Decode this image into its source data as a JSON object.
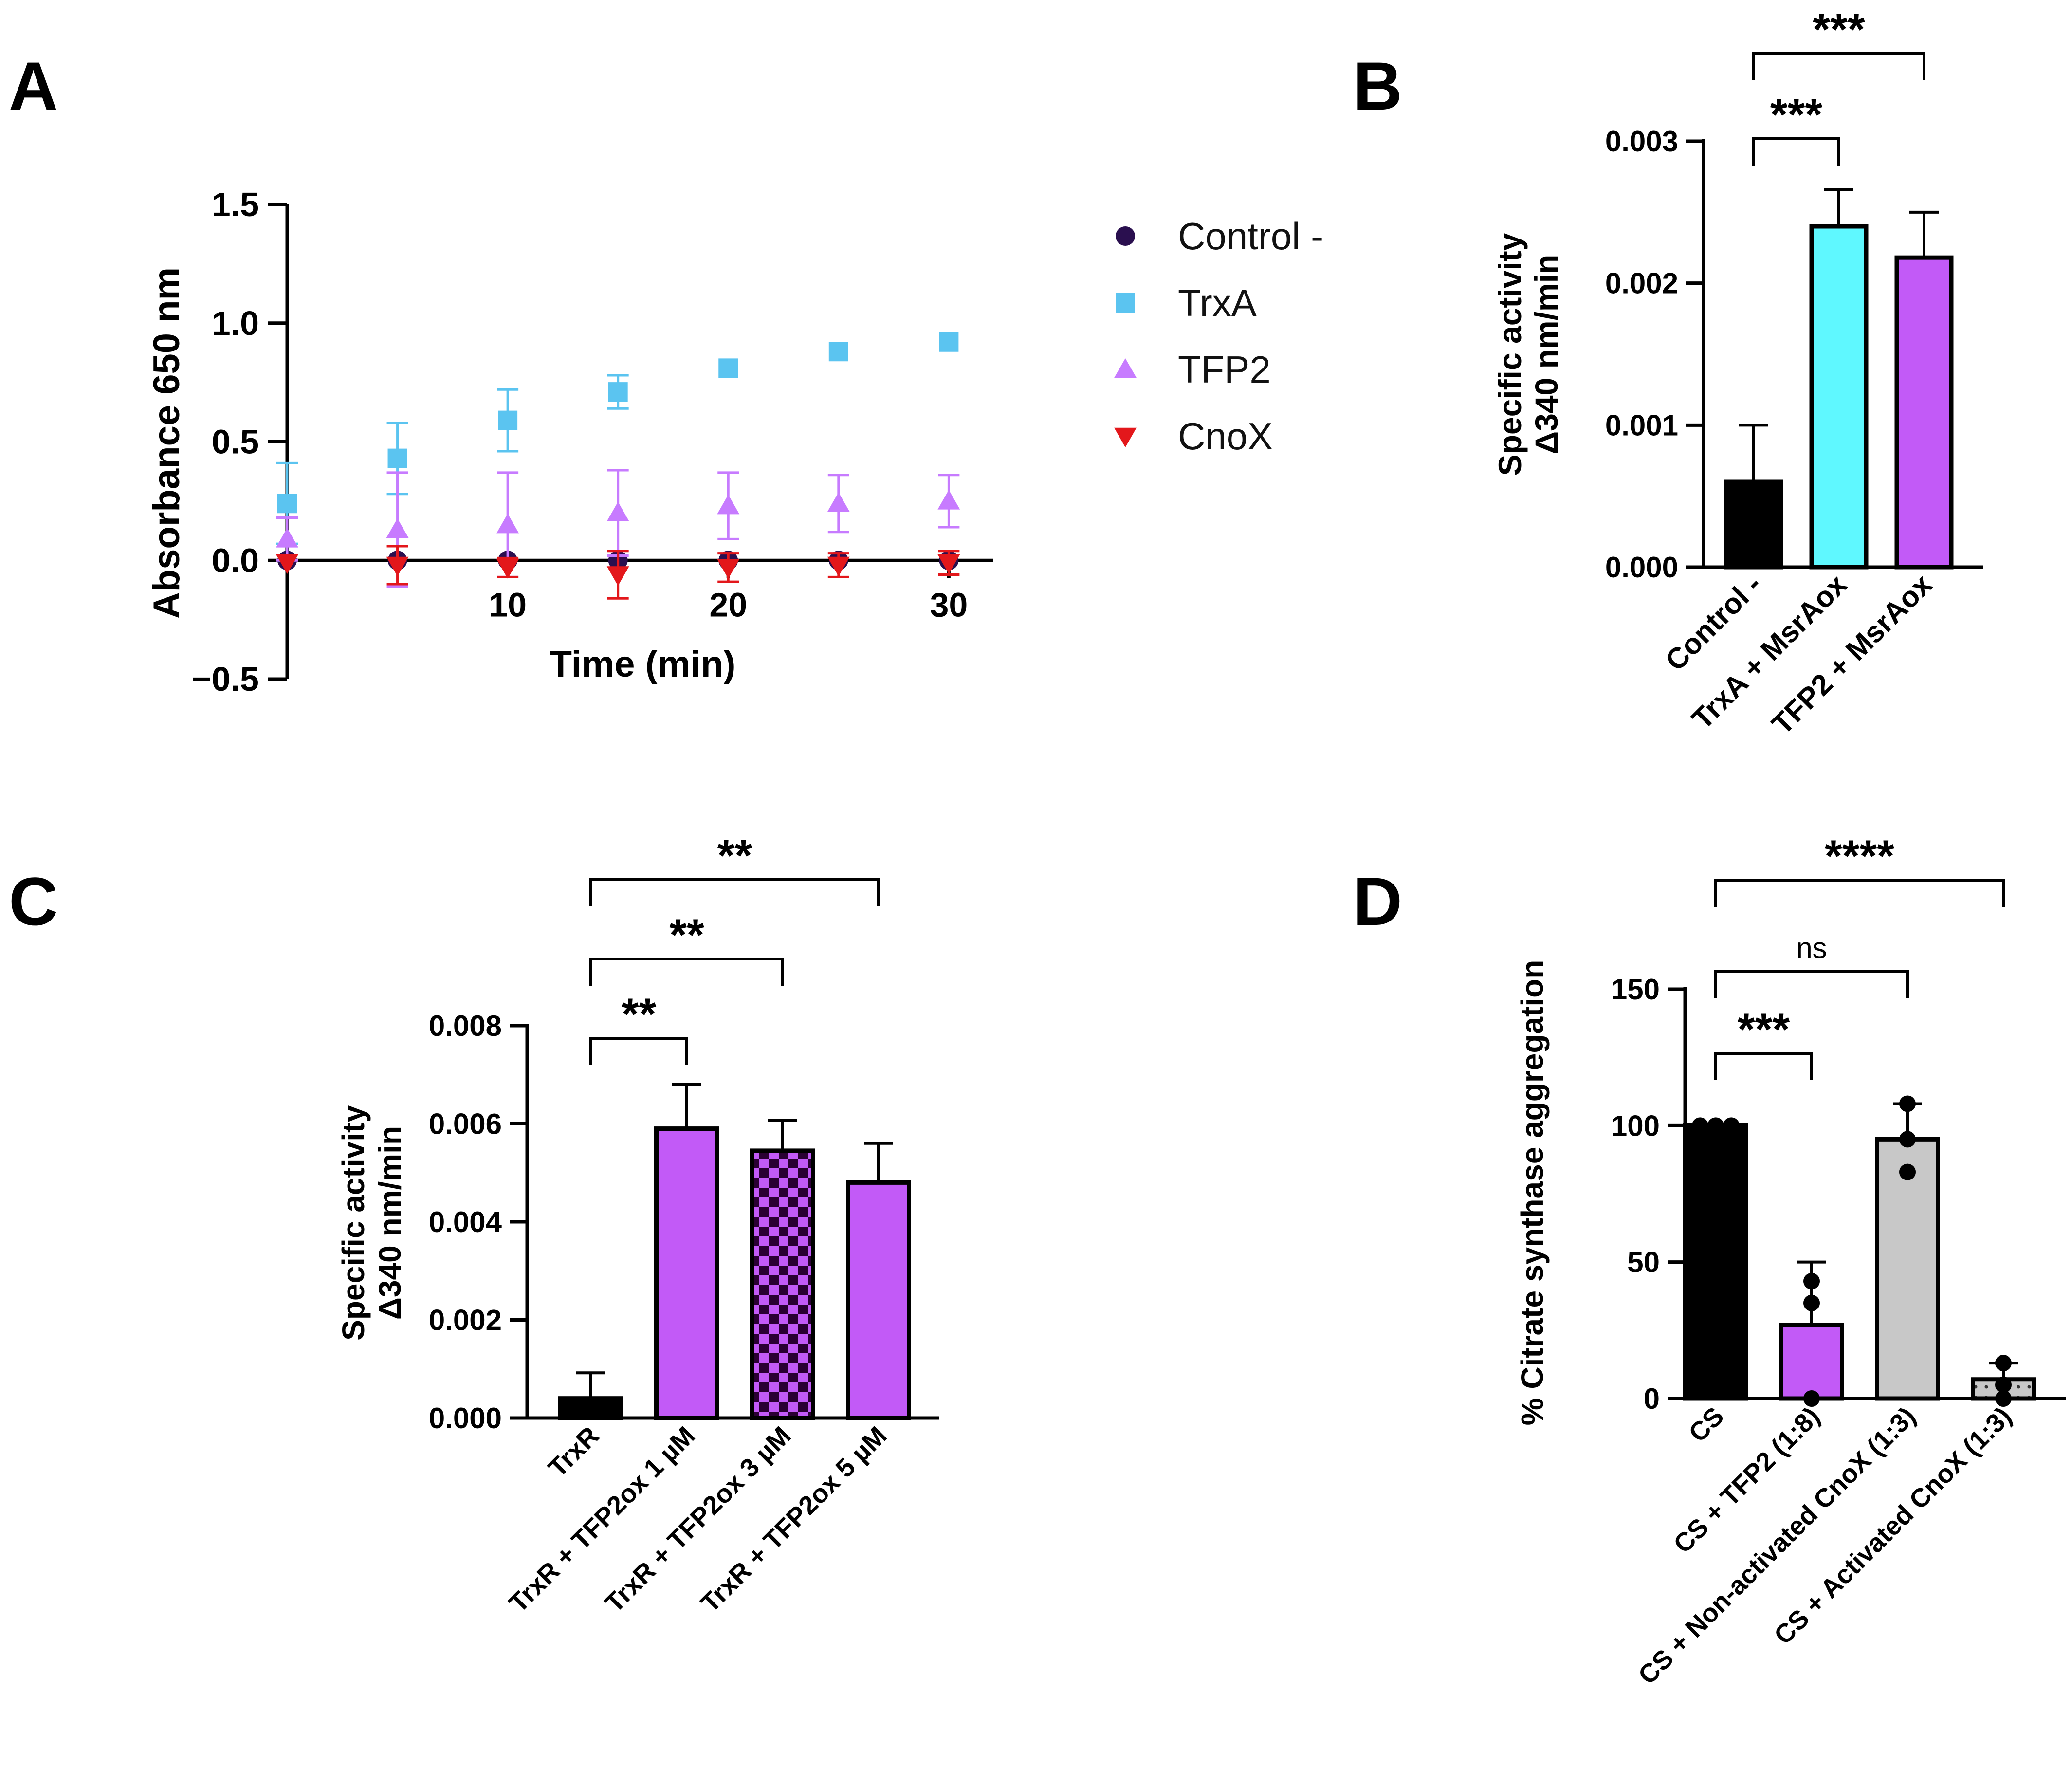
{
  "panels": {
    "A": {
      "label": "A",
      "chart_data": {
        "type": "scatter",
        "xlabel": "Time (min)",
        "ylabel": "Absorbance 650 nm",
        "xlim": [
          0,
          32
        ],
        "ylim": [
          -0.5,
          1.5
        ],
        "xticks": [
          10,
          20,
          30
        ],
        "yticks": [
          -0.5,
          0.0,
          0.5,
          1.0,
          1.5
        ],
        "ytick_labels": [
          "−0.5",
          "0.0",
          "0.5",
          "1.0",
          "1.5"
        ],
        "legend": "right",
        "series": [
          {
            "name": "Control -",
            "marker": "circle",
            "color": "#2a0f4f",
            "x": [
              0,
              5,
              10,
              15,
              20,
              25,
              30
            ],
            "y": [
              0.0,
              0.0,
              0.0,
              0.0,
              0.0,
              0.0,
              0.0
            ],
            "err": [
              0.02,
              0.02,
              0.02,
              0.02,
              0.02,
              0.02,
              0.02
            ]
          },
          {
            "name": "TrxA",
            "marker": "square",
            "color": "#5bc4f0",
            "x": [
              0,
              5,
              10,
              15,
              20,
              25,
              30
            ],
            "y": [
              0.24,
              0.43,
              0.59,
              0.71,
              0.81,
              0.88,
              0.92
            ],
            "err": [
              0.17,
              0.15,
              0.13,
              0.07,
              0.03,
              0.02,
              0.02
            ]
          },
          {
            "name": "TFP2",
            "marker": "triangle-up",
            "color": "#c77bff",
            "x": [
              0,
              5,
              10,
              15,
              20,
              25,
              30
            ],
            "y": [
              0.09,
              0.13,
              0.15,
              0.2,
              0.23,
              0.24,
              0.25
            ],
            "err": [
              0.09,
              0.24,
              0.22,
              0.18,
              0.14,
              0.12,
              0.11
            ]
          },
          {
            "name": "CnoX",
            "marker": "triangle-down",
            "color": "#e3171b",
            "x": [
              0,
              5,
              10,
              15,
              20,
              25,
              30
            ],
            "y": [
              -0.01,
              -0.02,
              -0.03,
              -0.06,
              -0.03,
              -0.02,
              -0.01
            ],
            "err": [
              0.02,
              0.08,
              0.04,
              0.1,
              0.06,
              0.05,
              0.05
            ]
          }
        ]
      }
    },
    "B": {
      "label": "B",
      "chart_data": {
        "type": "bar",
        "ylabel_lines": [
          "Specific activity",
          "Δ340 nm/min"
        ],
        "categories": [
          "Control -",
          "TrxA + MsrAox",
          "TFP2 + MsrAox"
        ],
        "values": [
          0.0006,
          0.0024,
          0.00218
        ],
        "errors": [
          0.0004,
          0.00026,
          0.00032
        ],
        "colors": [
          "#000000",
          "#5ff8ff",
          "#c25af7"
        ],
        "ylim": [
          0,
          0.003
        ],
        "yticks": [
          0,
          0.001,
          0.002,
          0.003
        ],
        "ytick_labels": [
          "0.000",
          "0.001",
          "0.002",
          "0.003"
        ],
        "significance": [
          {
            "from": 0,
            "to": 1,
            "label": "***"
          },
          {
            "from": 0,
            "to": 2,
            "label": "***"
          }
        ]
      }
    },
    "C": {
      "label": "C",
      "chart_data": {
        "type": "bar",
        "ylabel_lines": [
          "Specific activity",
          "Δ340 nm/min"
        ],
        "categories": [
          "TrxR",
          "TrxR + TFP2ox 1 µM",
          "TrxR + TFP2ox 3 µM",
          "TrxR + TFP2ox 5 µM"
        ],
        "values": [
          0.0004,
          0.0059,
          0.00545,
          0.0048
        ],
        "errors": [
          0.00052,
          0.0009,
          0.00062,
          0.0008
        ],
        "colors": [
          "#000000",
          "#c25af7",
          "#c25af7",
          "#c25af7"
        ],
        "patterns": [
          "solid",
          "solid",
          "checker",
          "solid"
        ],
        "ylim": [
          0,
          0.008
        ],
        "yticks": [
          0,
          0.002,
          0.004,
          0.006,
          0.008
        ],
        "ytick_labels": [
          "0.000",
          "0.002",
          "0.004",
          "0.006",
          "0.008"
        ],
        "significance": [
          {
            "from": 0,
            "to": 1,
            "label": "**"
          },
          {
            "from": 0,
            "to": 2,
            "label": "**"
          },
          {
            "from": 0,
            "to": 3,
            "label": "**"
          }
        ]
      }
    },
    "D": {
      "label": "D",
      "chart_data": {
        "type": "bar",
        "ylabel_lines": [
          "% Citrate synthase aggregation"
        ],
        "categories": [
          "CS",
          "CS + TFP2 (1:8)",
          "CS + Non-activated CnoX (1:3)",
          "CS + Activated CnoX (1:3)"
        ],
        "values": [
          100,
          27,
          95,
          7
        ],
        "errors": [
          0,
          23,
          13,
          6
        ],
        "colors": [
          "#000000",
          "#c25af7",
          "#c8c8c8",
          "#c8c8c8"
        ],
        "patterns": [
          "solid",
          "solid",
          "solid",
          "dotted"
        ],
        "points": [
          [
            100,
            100,
            100
          ],
          [
            0,
            35,
            43
          ],
          [
            108,
            95,
            83
          ],
          [
            0,
            5,
            13
          ]
        ],
        "ylim": [
          0,
          150
        ],
        "yticks": [
          0,
          50,
          100,
          150
        ],
        "ytick_labels": [
          "0",
          "50",
          "100",
          "150"
        ],
        "significance": [
          {
            "from": 0,
            "to": 1,
            "label": "***"
          },
          {
            "from": 0,
            "to": 2,
            "label": "ns"
          },
          {
            "from": 0,
            "to": 3,
            "label": "****"
          }
        ]
      }
    }
  }
}
